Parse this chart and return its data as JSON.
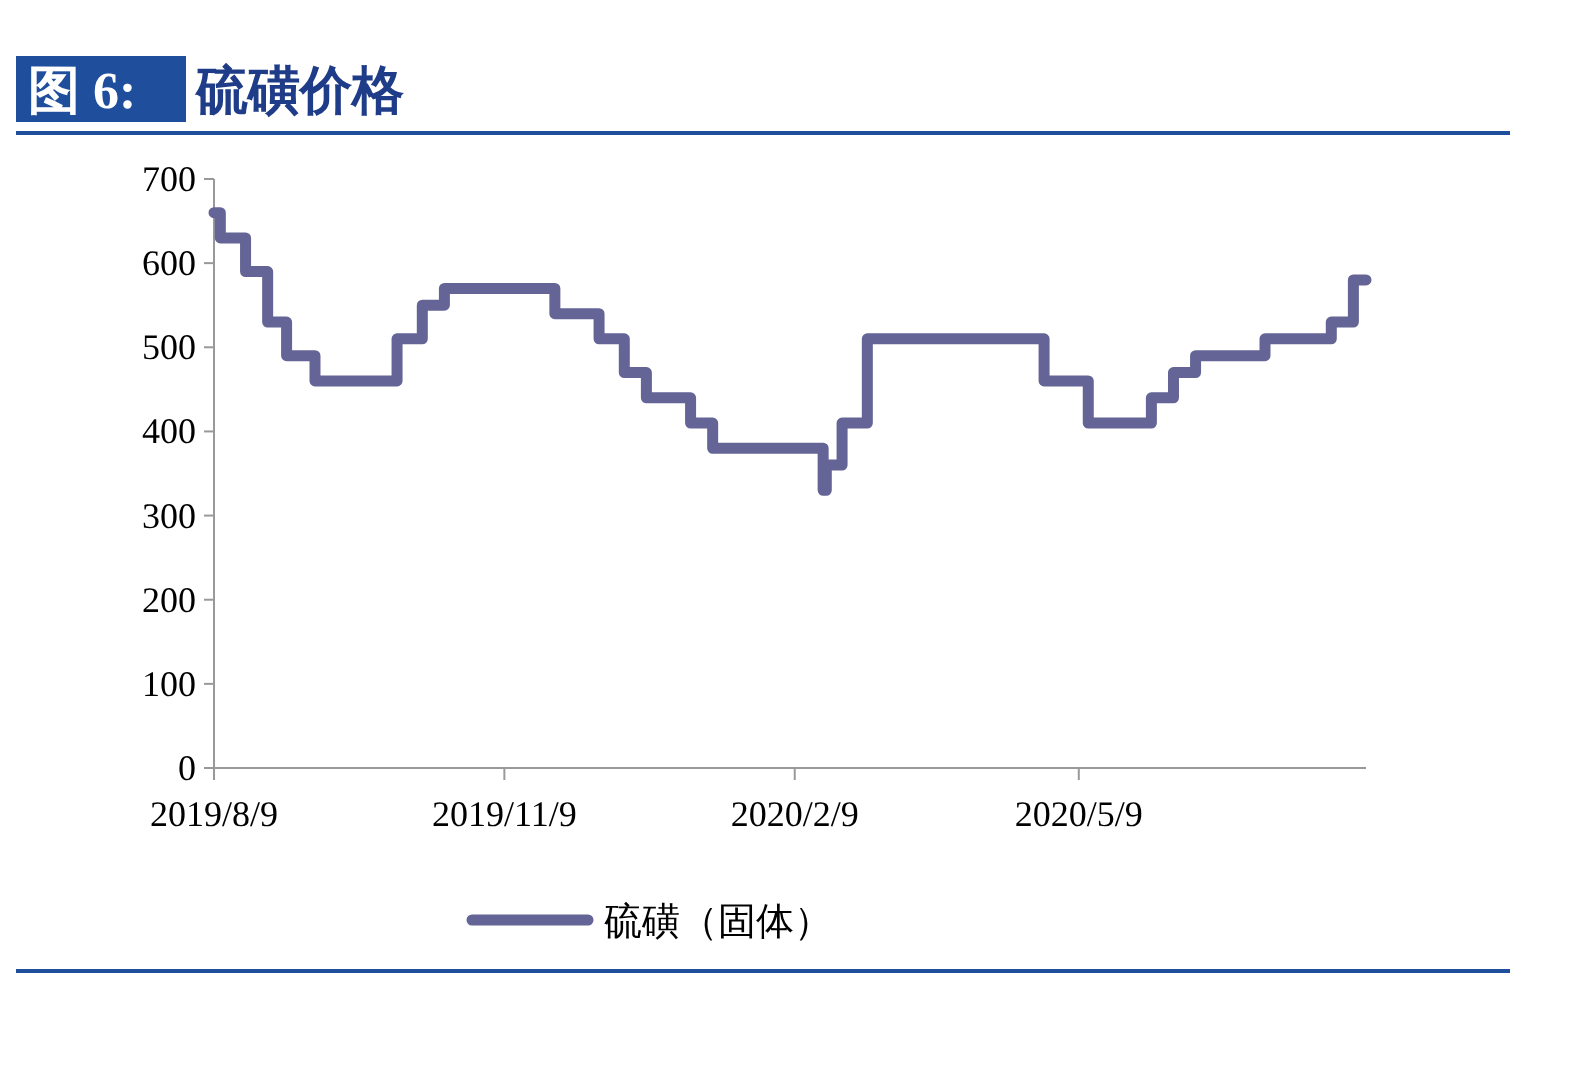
{
  "chart_data": {
    "type": "step",
    "title": "图 6: 硫磺价格",
    "x": [
      "2019-08-09",
      "2019-08-11",
      "2019-08-19",
      "2019-08-26",
      "2019-09-01",
      "2019-09-10",
      "2019-10-06",
      "2019-10-14",
      "2019-10-21",
      "2019-11-25",
      "2019-12-09",
      "2019-12-17",
      "2019-12-24",
      "2020-01-07",
      "2020-01-14",
      "2020-02-18",
      "2020-02-19",
      "2020-02-24",
      "2020-03-03",
      "2020-04-28",
      "2020-05-12",
      "2020-06-01",
      "2020-06-08",
      "2020-06-15",
      "2020-07-07",
      "2020-07-28",
      "2020-08-04",
      "2020-08-08"
    ],
    "series": [
      {
        "name": "硫磺（固体）",
        "color": "#646496",
        "values": [
          660,
          630,
          590,
          530,
          490,
          460,
          510,
          550,
          570,
          540,
          510,
          470,
          440,
          410,
          380,
          330,
          360,
          410,
          510,
          460,
          410,
          440,
          470,
          490,
          510,
          530,
          580,
          580
        ]
      }
    ],
    "xlim": [
      "2019-08-09",
      "2020-08-08"
    ],
    "xticks": [
      {
        "value": "2019-08-09",
        "label": "2019/8/9"
      },
      {
        "value": "2019-11-09",
        "label": "2019/11/9"
      },
      {
        "value": "2020-02-09",
        "label": "2020/2/9"
      },
      {
        "value": "2020-05-09",
        "label": "2020/5/9"
      }
    ],
    "ylim": [
      0,
      700
    ],
    "yticks": [
      0,
      100,
      200,
      300,
      400,
      500,
      600,
      700
    ],
    "legend": "bottom",
    "line_style": "solid",
    "marker": "none",
    "grid": false
  }
}
